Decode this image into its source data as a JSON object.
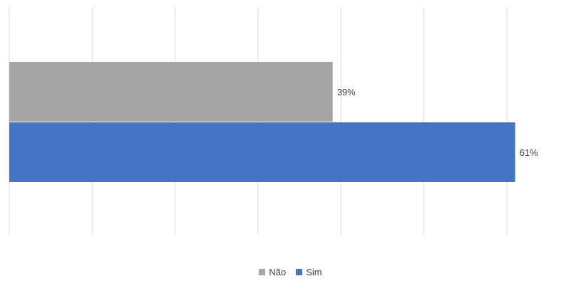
{
  "chart_data": {
    "type": "bar",
    "orientation": "horizontal",
    "xlim": [
      0,
      60
    ],
    "x_ticks": [
      0,
      10,
      20,
      30,
      40,
      50,
      60
    ],
    "grid": true,
    "legend_position": "bottom",
    "series": [
      {
        "name": "Não",
        "value": 39,
        "label": "39%",
        "color": "#a5a5a5"
      },
      {
        "name": "Sim",
        "value": 61,
        "label": "61%",
        "color": "#4472c4"
      }
    ]
  }
}
